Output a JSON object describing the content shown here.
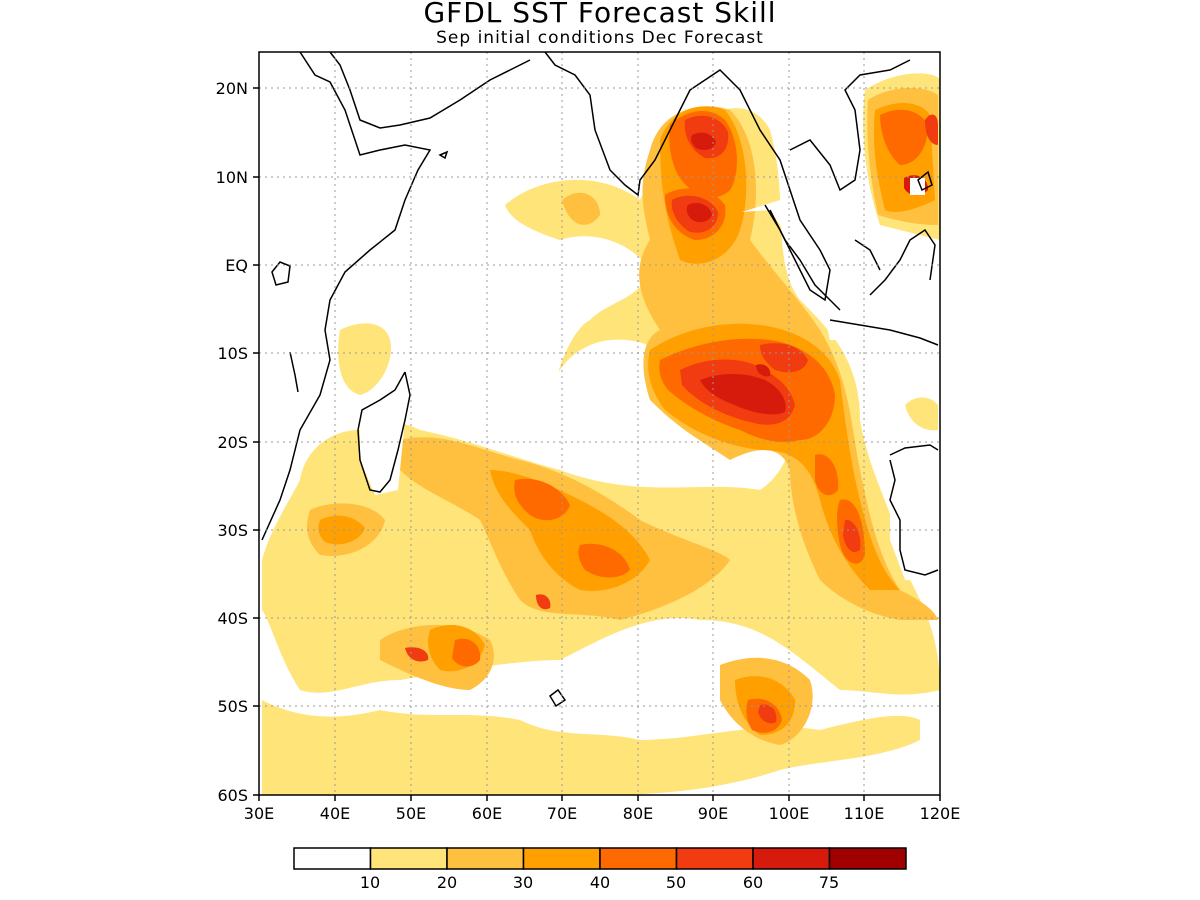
{
  "header": {
    "title": "GFDL SST Forecast Skill",
    "subtitle": "Sep initial conditions  Dec Forecast"
  },
  "map": {
    "lon_range": [
      30,
      120
    ],
    "lat_range": [
      -60,
      24
    ],
    "lon_ticks": [
      "30E",
      "40E",
      "50E",
      "60E",
      "70E",
      "80E",
      "90E",
      "100E",
      "110E",
      "120E"
    ],
    "lat_ticks": [
      "20N",
      "10N",
      "EQ",
      "10S",
      "20S",
      "30S",
      "40S",
      "50S",
      "60S"
    ],
    "gridlines": "dotted"
  },
  "legend": {
    "colors": [
      "#ffffff",
      "#ffe47a",
      "#ffc040",
      "#ffa000",
      "#ff6a00",
      "#f03c10",
      "#d61a0c",
      "#a00000"
    ],
    "labels": [
      "10",
      "20",
      "30",
      "40",
      "50",
      "60",
      "75"
    ]
  }
}
